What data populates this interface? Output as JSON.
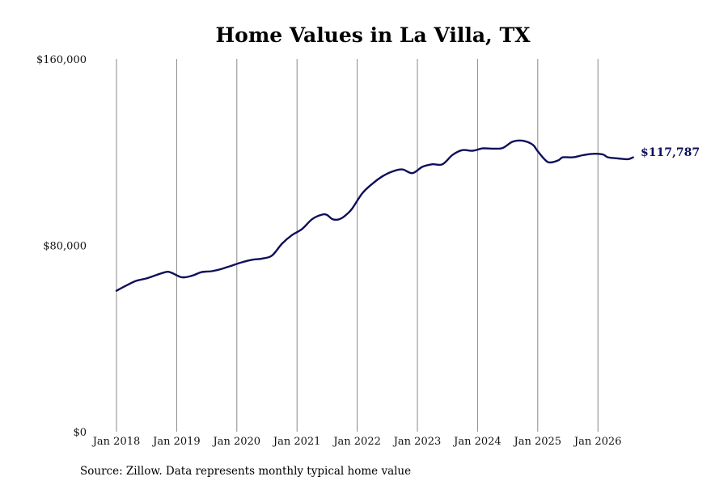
{
  "chart_data": {
    "type": "line",
    "title": "Home Values in La Villa, TX",
    "xlabel": "",
    "ylabel": "",
    "x_ticks": [
      "Jan 2018",
      "Jan 2019",
      "Jan 2020",
      "Jan 2021",
      "Jan 2022",
      "Jan 2023",
      "Jan 2024",
      "Jan 2025",
      "Jan 2026"
    ],
    "y_ticks": [
      "$0",
      "$80,000",
      "$160,000"
    ],
    "ylim": [
      0,
      160000
    ],
    "xlim": [
      "2018-01",
      "2026-12"
    ],
    "grid": "vertical",
    "colors": {
      "line": "#0f0f5a",
      "grid": "#888888"
    },
    "end_label": "$117,787",
    "series": [
      {
        "x": [
          "2018-01",
          "2018-03",
          "2018-05",
          "2018-07",
          "2018-09",
          "2018-11",
          "2018-12",
          "2019-02",
          "2019-04",
          "2019-06",
          "2019-08",
          "2019-10",
          "2019-12",
          "2020-02",
          "2020-04",
          "2020-06",
          "2020-08",
          "2020-10",
          "2020-12",
          "2021-02",
          "2021-04",
          "2021-06",
          "2021-07",
          "2021-08",
          "2021-09",
          "2021-10",
          "2021-11",
          "2021-12",
          "2022-02",
          "2022-04",
          "2022-06",
          "2022-08",
          "2022-10",
          "2022-12",
          "2023-02",
          "2023-04",
          "2023-06",
          "2023-08",
          "2023-10",
          "2023-12",
          "2024-02",
          "2024-04",
          "2024-06",
          "2024-08",
          "2024-10",
          "2024-12",
          "2025-01",
          "2025-03",
          "2025-05",
          "2025-06",
          "2025-08",
          "2025-10",
          "2025-12",
          "2026-02",
          "2026-03",
          "2026-05",
          "2026-07",
          "2026-08"
        ],
        "values": [
          60500,
          62800,
          64800,
          65800,
          67300,
          68600,
          68200,
          66300,
          66900,
          68500,
          68900,
          69900,
          71300,
          72700,
          73800,
          74300,
          75600,
          80700,
          84400,
          87000,
          91200,
          93200,
          93000,
          91300,
          91000,
          91800,
          93500,
          95800,
          102300,
          106400,
          109600,
          111700,
          112600,
          111000,
          113700,
          114800,
          114800,
          118800,
          120900,
          120600,
          121600,
          121500,
          121800,
          124500,
          124900,
          123200,
          120400,
          115800,
          116400,
          117800,
          117800,
          118700,
          119300,
          119000,
          117800,
          117300,
          117000,
          117787
        ]
      }
    ]
  },
  "source": "Source: Zillow. Data represents monthly typical home value"
}
